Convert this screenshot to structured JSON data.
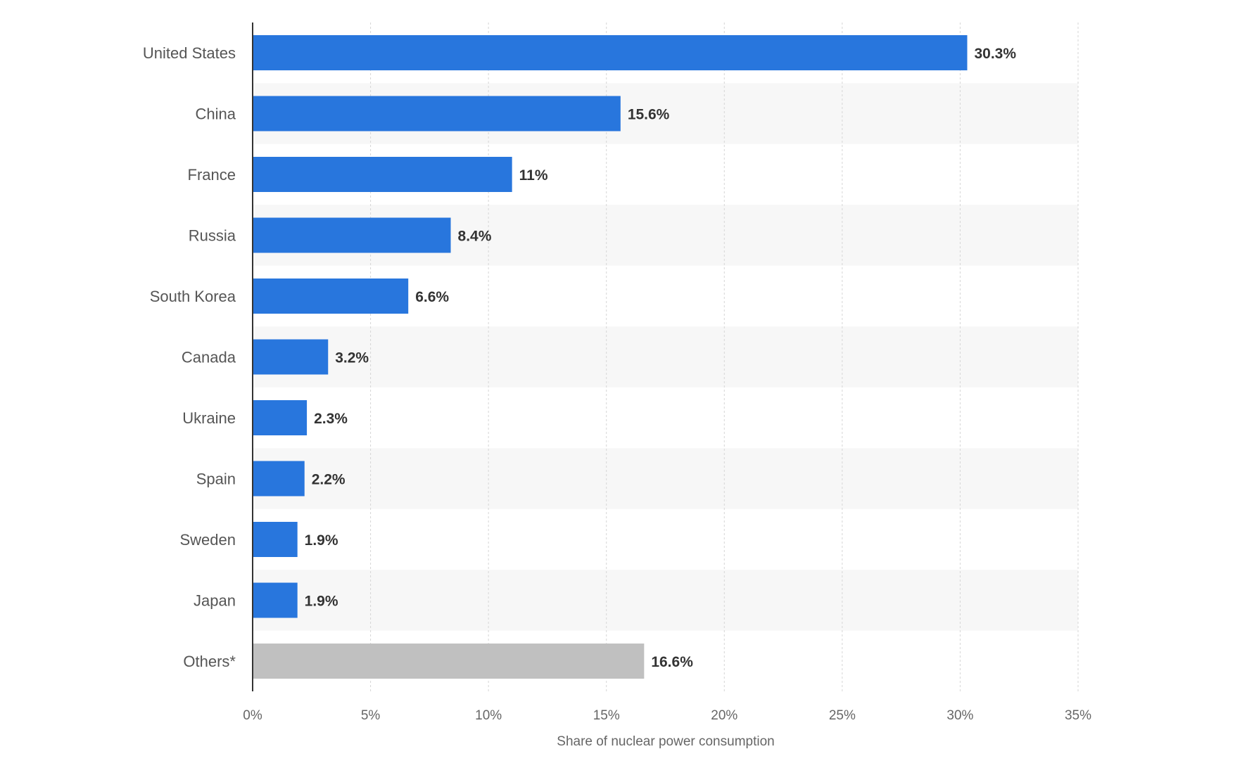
{
  "chart_data": {
    "type": "bar",
    "orientation": "horizontal",
    "title": "",
    "xlabel": "Share of nuclear power consumption",
    "ylabel": "",
    "categories": [
      "United States",
      "China",
      "France",
      "Russia",
      "South Korea",
      "Canada",
      "Ukraine",
      "Spain",
      "Sweden",
      "Japan",
      "Others*"
    ],
    "values": [
      30.3,
      15.6,
      11,
      8.4,
      6.6,
      3.2,
      2.3,
      2.2,
      1.9,
      1.9,
      16.6
    ],
    "value_labels": [
      "30.3%",
      "15.6%",
      "11%",
      "8.4%",
      "6.6%",
      "3.2%",
      "2.3%",
      "2.2%",
      "1.9%",
      "1.9%",
      "16.6%"
    ],
    "xlim": [
      0,
      35
    ],
    "xticks": [
      0,
      5,
      10,
      15,
      20,
      25,
      30,
      35
    ],
    "xtick_labels": [
      "0%",
      "5%",
      "10%",
      "15%",
      "20%",
      "25%",
      "30%",
      "35%"
    ],
    "grid": true,
    "colors": {
      "bar": "#2876dd",
      "others": "#c0c0c0",
      "band": "#f7f7f7",
      "grid": "#d6d6d6",
      "axis": "#333333"
    }
  }
}
